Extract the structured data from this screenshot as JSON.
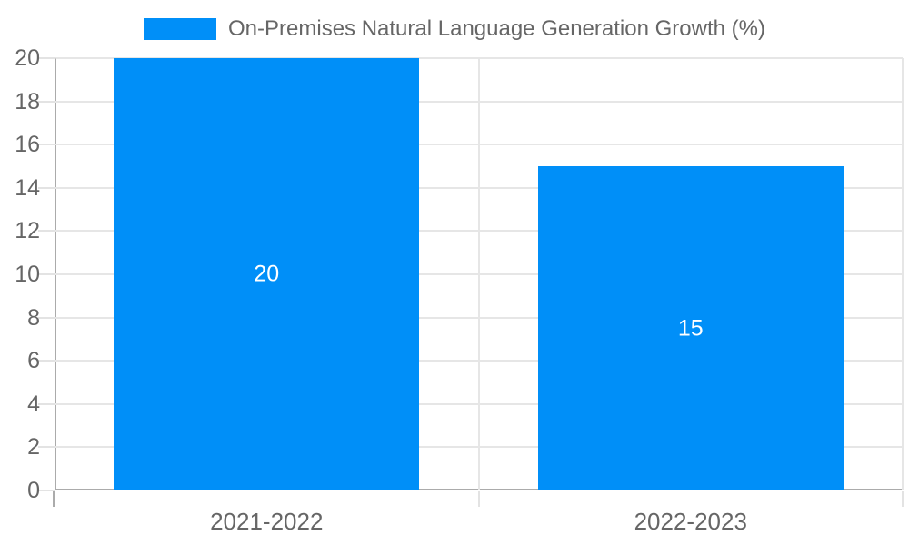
{
  "chart_data": {
    "type": "bar",
    "title": "",
    "legend": {
      "position": "top",
      "label": "On-Premises Natural Language Generation Growth (%)"
    },
    "categories": [
      "2021-2022",
      "2022-2023"
    ],
    "series": [
      {
        "name": "On-Premises Natural Language Generation Growth (%)",
        "values": [
          20,
          15
        ]
      }
    ],
    "data_labels": [
      "20",
      "15"
    ],
    "xlabel": "",
    "ylabel": "",
    "ylim": [
      0,
      20
    ],
    "ytick_step": 2,
    "grid": true,
    "colors": {
      "bar": "#008ff8",
      "grid": "#e6e6e6",
      "axis": "#ababab",
      "tick_text": "#666666",
      "legend_text": "#666666",
      "data_label_text": "#ffffff",
      "background": "#ffffff"
    }
  }
}
